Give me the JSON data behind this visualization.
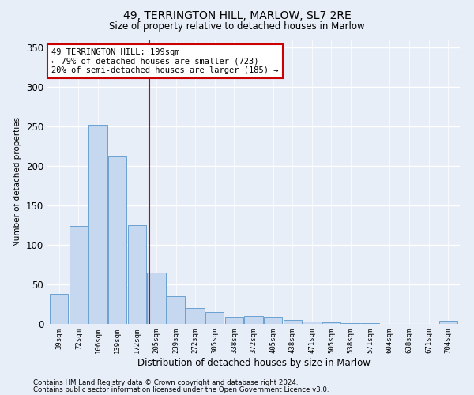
{
  "title_line1": "49, TERRINGTON HILL, MARLOW, SL7 2RE",
  "title_line2": "Size of property relative to detached houses in Marlow",
  "xlabel": "Distribution of detached houses by size in Marlow",
  "ylabel": "Number of detached properties",
  "annotation_line1": "49 TERRINGTON HILL: 199sqm",
  "annotation_line2": "← 79% of detached houses are smaller (723)",
  "annotation_line3": "20% of semi-detached houses are larger (185) →",
  "footnote_line1": "Contains HM Land Registry data © Crown copyright and database right 2024.",
  "footnote_line2": "Contains public sector information licensed under the Open Government Licence v3.0.",
  "bar_labels": [
    "39sqm",
    "72sqm",
    "106sqm",
    "139sqm",
    "172sqm",
    "205sqm",
    "239sqm",
    "272sqm",
    "305sqm",
    "338sqm",
    "372sqm",
    "405sqm",
    "438sqm",
    "471sqm",
    "505sqm",
    "538sqm",
    "571sqm",
    "604sqm",
    "638sqm",
    "671sqm",
    "704sqm"
  ],
  "bar_values": [
    38,
    124,
    252,
    212,
    125,
    65,
    35,
    20,
    15,
    9,
    10,
    9,
    5,
    3,
    2,
    1,
    1,
    0,
    0,
    0,
    4
  ],
  "bar_color": "#c5d8f0",
  "bar_edge_color": "#6aa0d0",
  "vline_x_index": 4.62,
  "vline_color": "#cc0000",
  "annotation_box_color": "#cc0000",
  "ylim": [
    0,
    360
  ],
  "yticks": [
    0,
    50,
    100,
    150,
    200,
    250,
    300,
    350
  ],
  "background_color": "#e8eef8",
  "grid_color": "#ffffff"
}
